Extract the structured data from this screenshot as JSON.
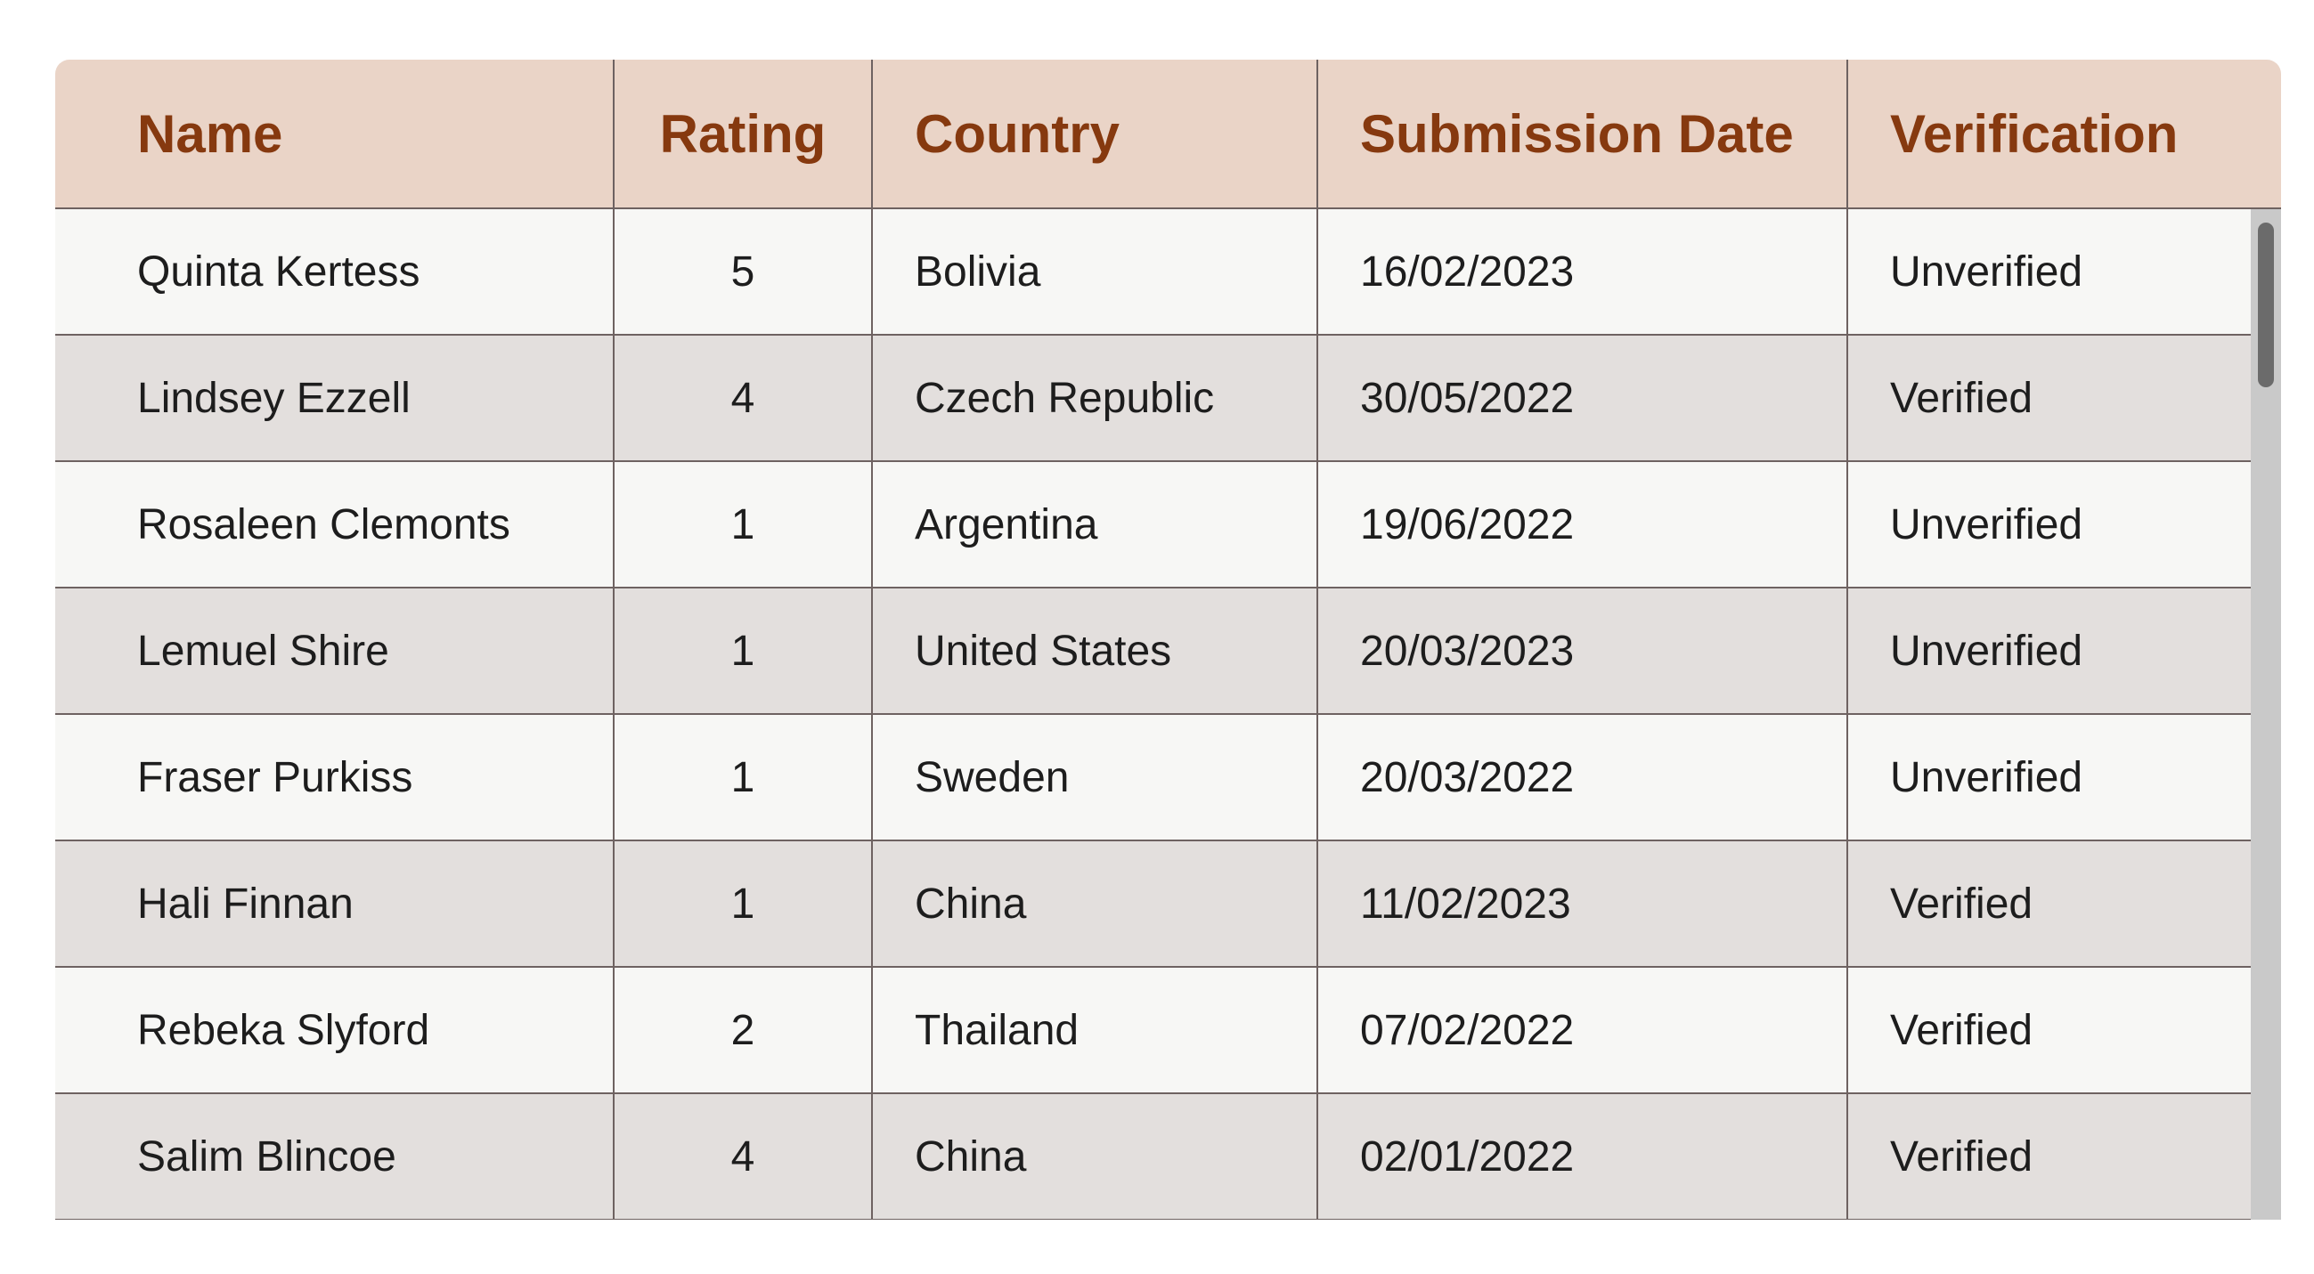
{
  "table": {
    "headers": [
      "Name",
      "Rating",
      "Country",
      "Submission Date",
      "Verification"
    ],
    "rows": [
      [
        "Quinta Kertess",
        "5",
        "Bolivia",
        "16/02/2023",
        "Unverified"
      ],
      [
        "Lindsey Ezzell",
        "4",
        "Czech Republic",
        "30/05/2022",
        "Verified"
      ],
      [
        "Rosaleen Clemonts",
        "1",
        "Argentina",
        "19/06/2022",
        "Unverified"
      ],
      [
        "Lemuel Shire",
        "1",
        "United States",
        "20/03/2023",
        "Unverified"
      ],
      [
        "Fraser Purkiss",
        "1",
        "Sweden",
        "20/03/2022",
        "Unverified"
      ],
      [
        "Hali Finnan",
        "1",
        "China",
        "11/02/2023",
        "Verified"
      ],
      [
        "Rebeka Slyford",
        "2",
        "Thailand",
        "07/02/2022",
        "Verified"
      ],
      [
        "Salim Blincoe",
        "4",
        "China",
        "02/01/2022",
        "Verified"
      ]
    ]
  },
  "colors": {
    "header_bg": "#ead4c7",
    "header_text": "#86390f",
    "row_odd_bg": "#f7f7f5",
    "row_even_bg": "#e3dfdd",
    "scrollbar_track": "#c9c9c9",
    "scrollbar_thumb": "#6b6b6b"
  }
}
